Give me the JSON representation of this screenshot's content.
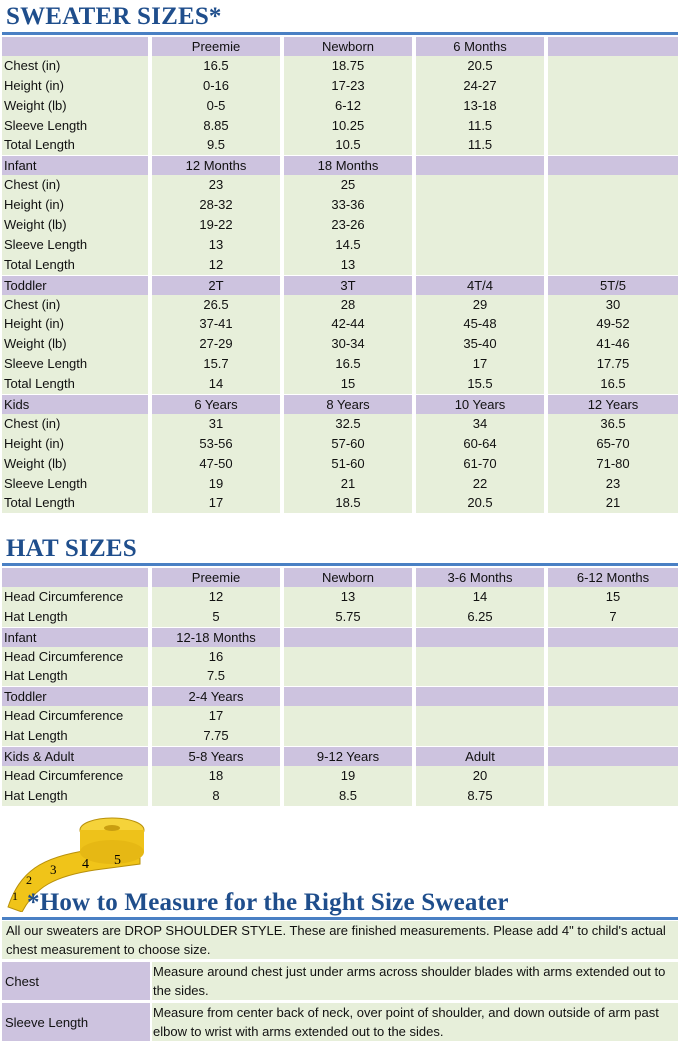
{
  "sweater": {
    "title": "SWEATER SIZES*",
    "groups": [
      {
        "header": [
          "",
          "Preemie",
          "Newborn",
          "6 Months",
          ""
        ],
        "rows": [
          [
            "Chest (in)",
            "16.5",
            "18.75",
            "20.5",
            ""
          ],
          [
            "Height (in)",
            "0-16",
            "17-23",
            "24-27",
            ""
          ],
          [
            "Weight (lb)",
            "0-5",
            "6-12",
            "13-18",
            ""
          ],
          [
            "Sleeve Length",
            "8.85",
            "10.25",
            "11.5",
            ""
          ],
          [
            "Total Length",
            "9.5",
            "10.5",
            "11.5",
            ""
          ]
        ]
      },
      {
        "header": [
          "Infant",
          "12 Months",
          "18 Months",
          "",
          ""
        ],
        "rows": [
          [
            "Chest (in)",
            "23",
            "25",
            "",
            ""
          ],
          [
            "Height (in)",
            "28-32",
            "33-36",
            "",
            ""
          ],
          [
            "Weight (lb)",
            "19-22",
            "23-26",
            "",
            ""
          ],
          [
            "Sleeve Length",
            "13",
            "14.5",
            "",
            ""
          ],
          [
            "Total Length",
            "12",
            "13",
            "",
            ""
          ]
        ]
      },
      {
        "header": [
          "Toddler",
          "2T",
          "3T",
          "4T/4",
          "5T/5"
        ],
        "rows": [
          [
            "Chest (in)",
            "26.5",
            "28",
            "29",
            "30"
          ],
          [
            "Height (in)",
            "37-41",
            "42-44",
            "45-48",
            "49-52"
          ],
          [
            "Weight (lb)",
            "27-29",
            "30-34",
            "35-40",
            "41-46"
          ],
          [
            "Sleeve Length",
            "15.7",
            "16.5",
            "17",
            "17.75"
          ],
          [
            "Total Length",
            "14",
            "15",
            "15.5",
            "16.5"
          ]
        ]
      },
      {
        "header": [
          "Kids",
          "6 Years",
          "8 Years",
          "10 Years",
          "12 Years"
        ],
        "rows": [
          [
            "Chest (in)",
            "31",
            "32.5",
            "34",
            "36.5"
          ],
          [
            "Height (in)",
            "53-56",
            "57-60",
            "60-64",
            "65-70"
          ],
          [
            "Weight (lb)",
            "47-50",
            "51-60",
            "61-70",
            "71-80"
          ],
          [
            "Sleeve Length",
            "19",
            "21",
            "22",
            "23"
          ],
          [
            "Total Length",
            "17",
            "18.5",
            "20.5",
            "21"
          ]
        ]
      }
    ]
  },
  "hat": {
    "title": "HAT SIZES",
    "groups": [
      {
        "header": [
          "",
          "Preemie",
          "Newborn",
          "3-6 Months",
          "6-12 Months"
        ],
        "rows": [
          [
            "Head Circumference",
            "12",
            "13",
            "14",
            "15"
          ],
          [
            "Hat Length",
            "5",
            "5.75",
            "6.25",
            "7"
          ]
        ]
      },
      {
        "header": [
          "Infant",
          "12-18 Months",
          "",
          "",
          ""
        ],
        "rows": [
          [
            "Head Circumference",
            "16",
            "",
            "",
            ""
          ],
          [
            "Hat Length",
            "7.5",
            "",
            "",
            ""
          ]
        ]
      },
      {
        "header": [
          "Toddler",
          "2-4 Years",
          "",
          "",
          ""
        ],
        "rows": [
          [
            "Head Circumference",
            "17",
            "",
            "",
            ""
          ],
          [
            "Hat Length",
            "7.75",
            "",
            "",
            ""
          ]
        ]
      },
      {
        "header": [
          "Kids & Adult",
          "5-8 Years",
          "9-12 Years",
          "Adult",
          ""
        ],
        "rows": [
          [
            "Head Circumference",
            "18",
            "19",
            "20",
            ""
          ],
          [
            "Hat Length",
            "8",
            "8.5",
            "8.75",
            ""
          ]
        ]
      }
    ]
  },
  "measure": {
    "title": "*How to Measure for the Right Size Sweater",
    "intro": "All our sweaters are DROP SHOULDER STYLE.  These are finished measurements.  Please add 4\" to child's actual chest measurement to choose size.",
    "items": [
      {
        "label": "Chest",
        "text": "Measure around chest just under arms across shoulder blades with arms extended out to the sides."
      },
      {
        "label": "Sleeve Length",
        "text": "Measure from center back of neck, over point of shoulder, and down outside of arm past elbow to wrist with arms extended out to the sides."
      }
    ],
    "tape_numbers": [
      "1",
      "2",
      "3",
      "4",
      "5"
    ]
  },
  "colors": {
    "title": "#1f4e8c",
    "rule": "#4a80c4",
    "header_row": "#cdc3df",
    "data_row": "#e7efda"
  }
}
